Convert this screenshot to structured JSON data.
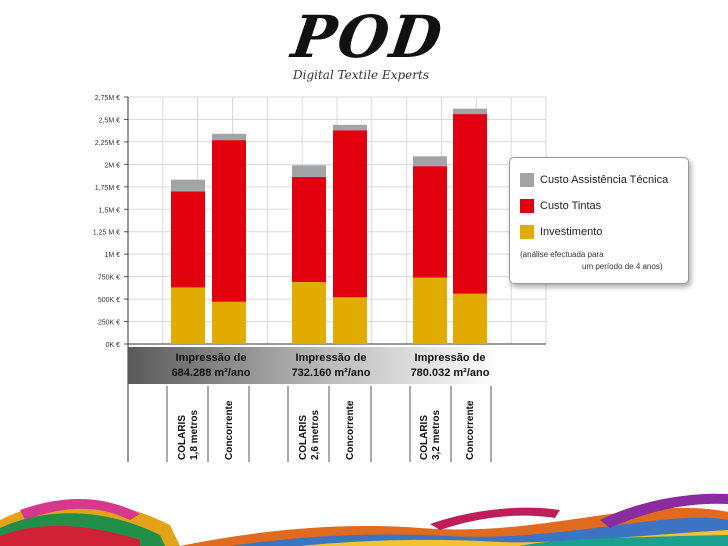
{
  "logo": {
    "brand": "POD",
    "tagline": "Digital Textile Experts"
  },
  "chart_data": {
    "type": "bar",
    "stacked": true,
    "y_axis": {
      "ylim": [
        0,
        2.75
      ],
      "unit": "M €",
      "tick_values": [
        0,
        0.25,
        0.5,
        0.75,
        1,
        1.25,
        1.5,
        1.75,
        2,
        2.25,
        2.5,
        2.75
      ],
      "tick_labels": [
        "0K €",
        "250K €",
        "500K €",
        "750K €",
        "1M €",
        "1,25 M €",
        "1,5M €",
        "1,75M €",
        "2M €",
        "2,25M €",
        "2,5M €",
        "2,75M €"
      ]
    },
    "grid": true,
    "groups": [
      {
        "label_line1": "Impressão de",
        "label_line2": "684.288 m²/ano",
        "bars": [
          {
            "label_line1": "COLARIS",
            "label_line2": "1,8 metros",
            "values": {
              "Investimento": 0.63,
              "Custo Tintas": 1.07,
              "Custo Assistência Técnica": 0.13
            }
          },
          {
            "label_line1": "Concorrente",
            "label_line2": "",
            "values": {
              "Investimento": 0.47,
              "Custo Tintas": 1.8,
              "Custo Assistência Técnica": 0.07
            }
          }
        ]
      },
      {
        "label_line1": "Impressão de",
        "label_line2": "732.160 m²/ano",
        "bars": [
          {
            "label_line1": "COLARIS",
            "label_line2": "2,6 metros",
            "values": {
              "Investimento": 0.69,
              "Custo Tintas": 1.17,
              "Custo Assistência Técnica": 0.13
            }
          },
          {
            "label_line1": "Concorrente",
            "label_line2": "",
            "values": {
              "Investimento": 0.52,
              "Custo Tintas": 1.86,
              "Custo Assistência Técnica": 0.06
            }
          }
        ]
      },
      {
        "label_line1": "Impressão de",
        "label_line2": "780.032 m²/ano",
        "bars": [
          {
            "label_line1": "COLARIS",
            "label_line2": "3,2 metros",
            "values": {
              "Investimento": 0.74,
              "Custo Tintas": 1.24,
              "Custo Assistência Técnica": 0.11
            }
          },
          {
            "label_line1": "Concorrente",
            "label_line2": "",
            "values": {
              "Investimento": 0.56,
              "Custo Tintas": 2.0,
              "Custo Assistência Técnica": 0.06
            }
          }
        ]
      }
    ],
    "legend": {
      "placement": "right",
      "entries": [
        {
          "name": "Custo Assistência Técnica",
          "color": "#a2a5a7"
        },
        {
          "name": "Custo Tintas",
          "color": "#e2000e"
        },
        {
          "name": "Investimento",
          "color": "#e2ab00"
        }
      ],
      "note_line1": "(análise efectuada para",
      "note_line2": "um período de 4 anos)"
    },
    "colors": {
      "Investimento": "#e2ab00",
      "Custo Tintas": "#e2000e",
      "Custo Assistência Técnica": "#a2a5a7"
    }
  }
}
